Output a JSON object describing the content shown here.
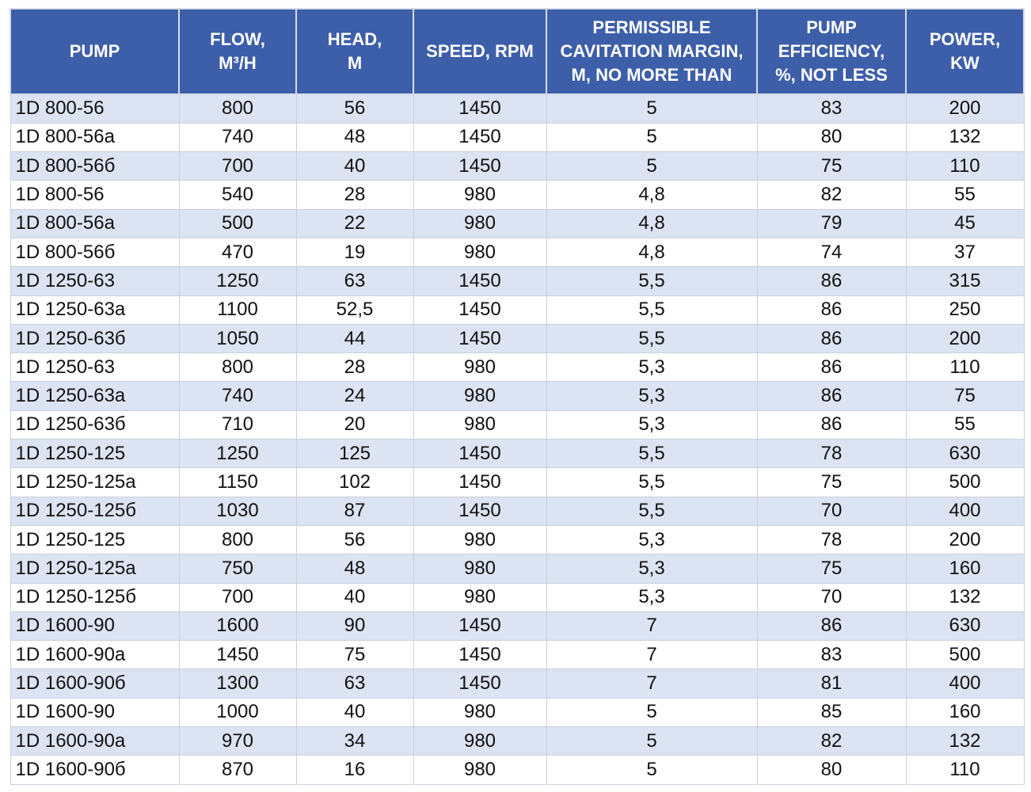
{
  "table": {
    "headers": [
      [
        "PUMP"
      ],
      [
        "FLOW,",
        "M³/H"
      ],
      [
        "HEAD,",
        "M"
      ],
      [
        "SPEED, RPM"
      ],
      [
        "PERMISSIBLE",
        "CAVITATION MARGIN,",
        "M, NO MORE THAN"
      ],
      [
        "PUMP",
        "EFFICIENCY,",
        "%, NOT LESS"
      ],
      [
        "POWER,",
        "KW"
      ]
    ],
    "rows": [
      [
        "1D 800-56",
        "800",
        "56",
        "1450",
        "5",
        "83",
        "200"
      ],
      [
        "1D 800-56a",
        "740",
        "48",
        "1450",
        "5",
        "80",
        "132"
      ],
      [
        "1D 800-56б",
        "700",
        "40",
        "1450",
        "5",
        "75",
        "110"
      ],
      [
        "1D 800-56",
        "540",
        "28",
        "980",
        "4,8",
        "82",
        "55"
      ],
      [
        "1D 800-56a",
        "500",
        "22",
        "980",
        "4,8",
        "79",
        "45"
      ],
      [
        "1D 800-56б",
        "470",
        "19",
        "980",
        "4,8",
        "74",
        "37"
      ],
      [
        "1D 1250-63",
        "1250",
        "63",
        "1450",
        "5,5",
        "86",
        "315"
      ],
      [
        "1D 1250-63a",
        "1100",
        "52,5",
        "1450",
        "5,5",
        "86",
        "250"
      ],
      [
        "1D 1250-63б",
        "1050",
        "44",
        "1450",
        "5,5",
        "86",
        "200"
      ],
      [
        "1D 1250-63",
        "800",
        "28",
        "980",
        "5,3",
        "86",
        "110"
      ],
      [
        "1D 1250-63a",
        "740",
        "24",
        "980",
        "5,3",
        "86",
        "75"
      ],
      [
        "1D 1250-63б",
        "710",
        "20",
        "980",
        "5,3",
        "86",
        "55"
      ],
      [
        "1D 1250-125",
        "1250",
        "125",
        "1450",
        "5,5",
        "78",
        "630"
      ],
      [
        "1D 1250-125a",
        "1150",
        "102",
        "1450",
        "5,5",
        "75",
        "500"
      ],
      [
        "1D 1250-125б",
        "1030",
        "87",
        "1450",
        "5,5",
        "70",
        "400"
      ],
      [
        "1D 1250-125",
        "800",
        "56",
        "980",
        "5,3",
        "78",
        "200"
      ],
      [
        "1D 1250-125a",
        "750",
        "48",
        "980",
        "5,3",
        "75",
        "160"
      ],
      [
        "1D 1250-125б",
        "700",
        "40",
        "980",
        "5,3",
        "70",
        "132"
      ],
      [
        "1D 1600-90",
        "1600",
        "90",
        "1450",
        "7",
        "86",
        "630"
      ],
      [
        "1D 1600-90a",
        "1450",
        "75",
        "1450",
        "7",
        "83",
        "500"
      ],
      [
        "1D 1600-90б",
        "1300",
        "63",
        "1450",
        "7",
        "81",
        "400"
      ],
      [
        "1D 1600-90",
        "1000",
        "40",
        "980",
        "5",
        "85",
        "160"
      ],
      [
        "1D 1600-90a",
        "970",
        "34",
        "980",
        "5",
        "82",
        "132"
      ],
      [
        "1D 1600-90б",
        "870",
        "16",
        "980",
        "5",
        "80",
        "110"
      ]
    ]
  }
}
